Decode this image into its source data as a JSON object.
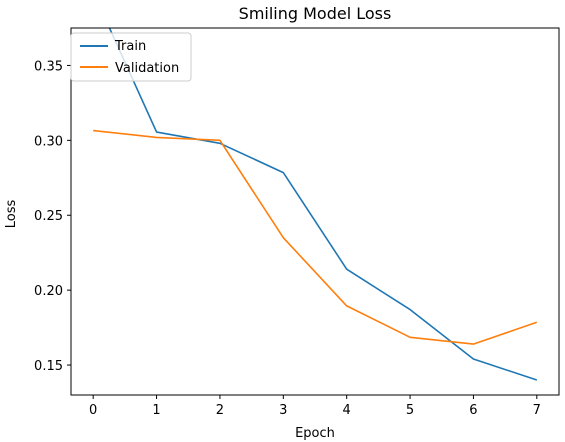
{
  "chart_data": {
    "type": "line",
    "title": "Smiling Model Loss",
    "xlabel": "Epoch",
    "ylabel": "Loss",
    "x": [
      0,
      1,
      2,
      3,
      4,
      5,
      6,
      7
    ],
    "xlim": [
      -0.35,
      7.35
    ],
    "ylim": [
      0.13,
      0.375
    ],
    "xticks": [
      "0",
      "1",
      "2",
      "3",
      "4",
      "5",
      "6",
      "7"
    ],
    "yticks": [
      "0.15",
      "0.20",
      "0.25",
      "0.30",
      "0.35"
    ],
    "grid": false,
    "legend_position": "top-left",
    "series": [
      {
        "name": "Train",
        "color": "#1f77b4",
        "values": [
          0.399,
          0.3055,
          0.298,
          0.2785,
          0.214,
          0.187,
          0.154,
          0.14
        ]
      },
      {
        "name": "Validation",
        "color": "#ff7f0e",
        "values": [
          0.3065,
          0.302,
          0.3,
          0.235,
          0.1895,
          0.1685,
          0.164,
          0.1785
        ]
      }
    ]
  }
}
